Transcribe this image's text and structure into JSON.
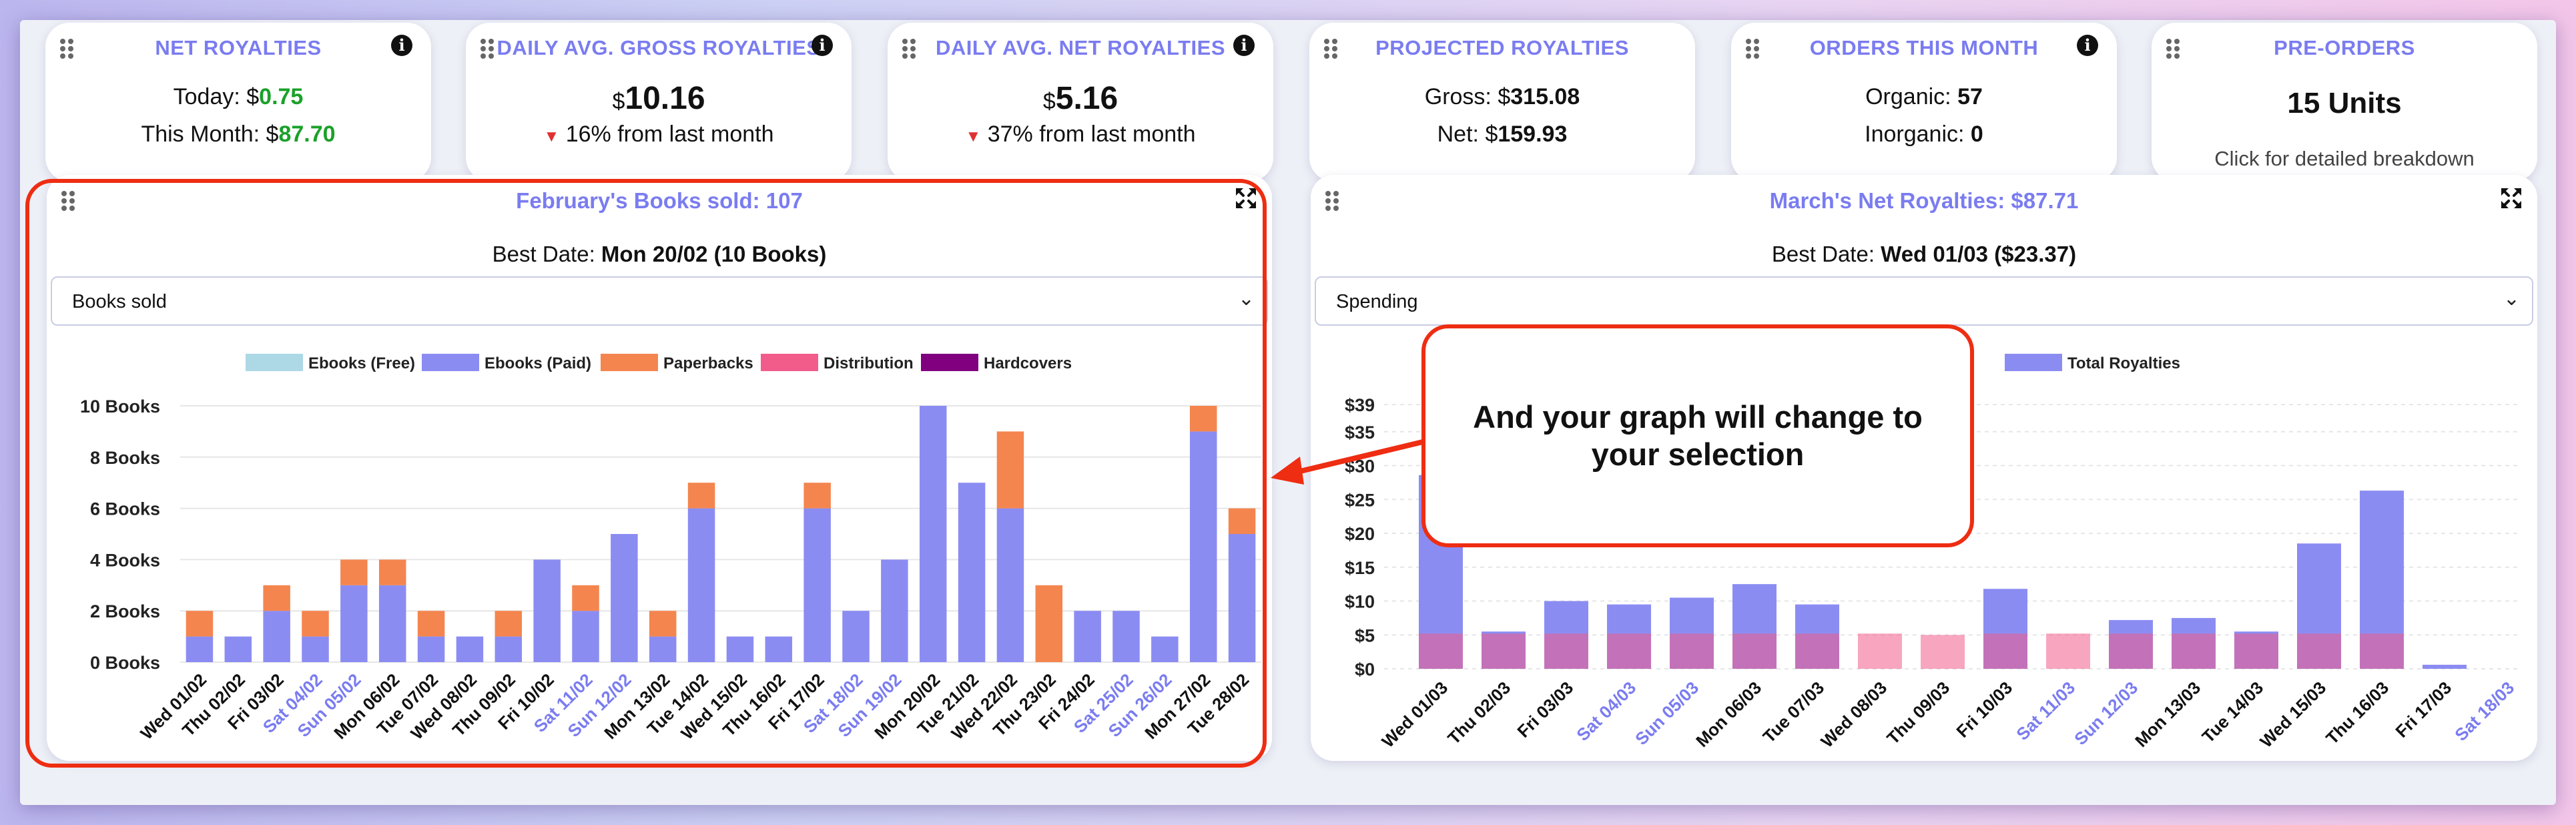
{
  "cards": {
    "net_royalties": {
      "title": "NET ROYALTIES",
      "today_label": "Today: ",
      "currency": "$",
      "today_value": "0.75",
      "month_label": "This Month: ",
      "month_value": "87.70"
    },
    "daily_gross": {
      "title": "DAILY AVG. GROSS ROYALTIES",
      "currency": "$",
      "value": "10.16",
      "change": "16% from last month"
    },
    "daily_net": {
      "title": "DAILY AVG. NET ROYALTIES",
      "currency": "$",
      "value": "5.16",
      "change": "37% from last month"
    },
    "projected": {
      "title": "PROJECTED ROYALTIES",
      "gross_label": "Gross: ",
      "currency": "$",
      "gross_value": "315.08",
      "net_label": "Net: ",
      "net_value": "159.93"
    },
    "orders": {
      "title": "ORDERS THIS MONTH",
      "organic_label": "Organic: ",
      "organic_value": "57",
      "inorganic_label": "Inorganic: ",
      "inorganic_value": "0"
    },
    "preorders": {
      "title": "PRE-ORDERS",
      "value": "15 Units",
      "hint": "Click for detailed breakdown"
    }
  },
  "left_panel": {
    "title": "February's Books sold: 107",
    "best_label": "Best Date: ",
    "best_value": "Mon 20/02 (10 Books)",
    "select_value": "Books sold"
  },
  "right_panel": {
    "title_prefix": "March's Net Royalties: ",
    "currency": "$",
    "title_value": "87.71",
    "best_label": "Best Date: ",
    "best_value_prefix": "Wed 01/03 (",
    "best_value_amount": "23.37",
    "best_value_suffix": ")",
    "select_value": "Spending"
  },
  "callout": {
    "text": "And your graph will change to your selection"
  },
  "colors": {
    "accent": "#7a7cf0",
    "ebooks_free": "#add8e6",
    "ebooks_paid": "#8b8cf2",
    "paperbacks": "#f4854e",
    "distribution": "#f25c8a",
    "hardcovers": "#800080",
    "highlight": "#ee2d12",
    "weekend": "#7a7cf0"
  },
  "chart_data": [
    {
      "type": "bar",
      "title": "February's Books sold: 107",
      "ylabel": "Books",
      "ylim": [
        0,
        10
      ],
      "y_ticks": [
        "0 Books",
        "2 Books",
        "4 Books",
        "6 Books",
        "8 Books",
        "10 Books"
      ],
      "legend": [
        "Ebooks (Free)",
        "Ebooks (Paid)",
        "Paperbacks",
        "Distribution",
        "Hardcovers"
      ],
      "categories": [
        "Wed 01/02",
        "Thu 02/02",
        "Fri 03/02",
        "Sat 04/02",
        "Sun 05/02",
        "Mon 06/02",
        "Tue 07/02",
        "Wed 08/02",
        "Thu 09/02",
        "Fri 10/02",
        "Sat 11/02",
        "Sun 12/02",
        "Mon 13/02",
        "Tue 14/02",
        "Wed 15/02",
        "Thu 16/02",
        "Fri 17/02",
        "Sat 18/02",
        "Sun 19/02",
        "Mon 20/02",
        "Tue 21/02",
        "Wed 22/02",
        "Thu 23/02",
        "Fri 24/02",
        "Sat 25/02",
        "Sun 26/02",
        "Mon 27/02",
        "Tue 28/02"
      ],
      "weekend": [
        false,
        false,
        false,
        true,
        true,
        false,
        false,
        false,
        false,
        false,
        true,
        true,
        false,
        false,
        false,
        false,
        false,
        true,
        true,
        false,
        false,
        false,
        false,
        false,
        true,
        true,
        false,
        false
      ],
      "series": [
        {
          "name": "Ebooks (Paid)",
          "values": [
            1,
            1,
            2,
            1,
            3,
            3,
            1,
            1,
            1,
            4,
            2,
            5,
            1,
            6,
            1,
            1,
            6,
            2,
            4,
            10,
            7,
            6,
            0,
            2,
            2,
            1,
            9,
            5
          ]
        },
        {
          "name": "Paperbacks",
          "values": [
            1,
            0,
            1,
            1,
            1,
            1,
            1,
            0,
            1,
            0,
            1,
            0,
            1,
            1,
            0,
            0,
            1,
            0,
            0,
            0,
            0,
            3,
            3,
            0,
            0,
            0,
            1,
            1
          ]
        }
      ]
    },
    {
      "type": "bar",
      "title": "March's Net Royalties: $87.71",
      "ylim": [
        0,
        40
      ],
      "y_ticks": [
        "$0",
        "$5",
        "$10",
        "$15",
        "$20",
        "$25",
        "$30",
        "$35",
        "$39"
      ],
      "legend": [
        "Total Royalties"
      ],
      "categories": [
        "Wed 01/03",
        "Thu 02/03",
        "Fri 03/03",
        "Sat 04/03",
        "Sun 05/03",
        "Mon 06/03",
        "Tue 07/03",
        "Wed 08/03",
        "Thu 09/03",
        "Fri 10/03",
        "Sat 11/03",
        "Sun 12/03",
        "Mon 13/03",
        "Tue 14/03",
        "Wed 15/03",
        "Thu 16/03",
        "Fri 17/03",
        "Sat 18/03"
      ],
      "weekend": [
        false,
        false,
        false,
        true,
        true,
        false,
        false,
        false,
        false,
        false,
        true,
        true,
        false,
        false,
        false,
        false,
        false,
        true
      ],
      "series": [
        {
          "name": "Royalties",
          "values": [
            28.6,
            5.5,
            10,
            9.5,
            10.5,
            12.5,
            9.5,
            0,
            0,
            11.8,
            0,
            7.2,
            7.5,
            5.5,
            18.5,
            26.3,
            0.6,
            0
          ]
        },
        {
          "name": "Spending",
          "values": [
            5.2,
            5.2,
            5.2,
            5.2,
            5.2,
            5.2,
            5.2,
            5.2,
            5,
            5.2,
            5.2,
            5.2,
            5.2,
            5.2,
            5.2,
            5.2,
            0,
            0
          ]
        }
      ]
    }
  ]
}
